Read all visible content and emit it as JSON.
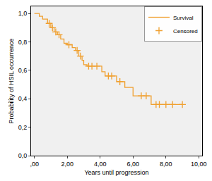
{
  "chart_data": {
    "type": "line",
    "x_label": "Years until progression",
    "y_label": "Probability of HSIL occurrence",
    "legend": "top-right",
    "grid": false,
    "xlim": [
      -0.2,
      10.2
    ],
    "xticks": [
      {
        "value": 0,
        "label": ",00"
      },
      {
        "value": 2,
        "label": "2,00"
      },
      {
        "value": 4,
        "label": "4,00"
      },
      {
        "value": 6,
        "label": "6,00"
      },
      {
        "value": 8,
        "label": "8,00"
      },
      {
        "value": 10,
        "label": "10,00"
      }
    ],
    "ylim": [
      0,
      1.05
    ],
    "yticks": [
      {
        "value": 0,
        "label": "0,0"
      },
      {
        "value": 0.2,
        "label": "0,2"
      },
      {
        "value": 0.4,
        "label": "0,4"
      },
      {
        "value": 0.6,
        "label": "0,6"
      },
      {
        "value": 0.8,
        "label": "0,8"
      },
      {
        "value": 1.0,
        "label": "1,0"
      }
    ],
    "series": [
      {
        "name": "Survival",
        "type": "line",
        "line_style": "step",
        "color": "#f0a030",
        "x": [
          0,
          0.3,
          0.5,
          0.8,
          1.0,
          1.2,
          1.4,
          1.6,
          1.8,
          2.0,
          2.3,
          2.5,
          2.7,
          2.9,
          3.0,
          3.2,
          4.1,
          4.3,
          5.0,
          5.5,
          6.0,
          7.1,
          9.0
        ],
        "values": [
          1.0,
          0.98,
          0.96,
          0.93,
          0.9,
          0.87,
          0.85,
          0.82,
          0.79,
          0.78,
          0.76,
          0.74,
          0.7,
          0.67,
          0.64,
          0.63,
          0.59,
          0.56,
          0.52,
          0.48,
          0.42,
          0.36,
          0.36
        ]
      },
      {
        "name": "Censored",
        "type": "scatter",
        "marker": "cross",
        "color": "#f0a030",
        "x": [
          0.9,
          1.1,
          1.3,
          1.5,
          2.1,
          2.6,
          2.8,
          3.3,
          3.5,
          3.8,
          4.5,
          4.7,
          5.2,
          6.5,
          6.8,
          7.4,
          7.6,
          8.0,
          8.4,
          9.0
        ],
        "values": [
          0.93,
          0.9,
          0.87,
          0.85,
          0.78,
          0.74,
          0.7,
          0.63,
          0.63,
          0.63,
          0.56,
          0.56,
          0.52,
          0.42,
          0.42,
          0.36,
          0.36,
          0.36,
          0.36,
          0.36
        ]
      }
    ]
  }
}
